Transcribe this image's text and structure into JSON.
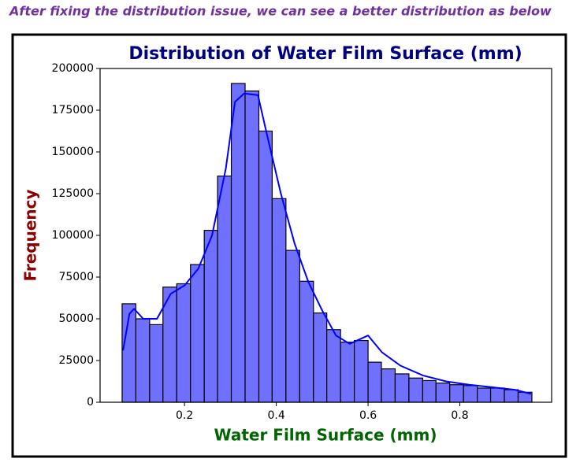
{
  "caption": "After fixing the distribution issue, we can see a better distribution as below",
  "caption_color": "#7030a0",
  "chart_data": {
    "type": "histogram",
    "title": "Distribution of Water Film Surface (mm)",
    "title_color": "#000080",
    "x_label": "Water Film Surface (mm)",
    "x_label_color": "#006400",
    "y_label": "Frequency",
    "y_label_color": "#8b0000",
    "bins": [
      0.064,
      0.094,
      0.124,
      0.153,
      0.183,
      0.213,
      0.243,
      0.272,
      0.302,
      0.332,
      0.362,
      0.391,
      0.421,
      0.451,
      0.481,
      0.51,
      0.54,
      0.57,
      0.6,
      0.629,
      0.659,
      0.689,
      0.719,
      0.748,
      0.778,
      0.808,
      0.838,
      0.867,
      0.897,
      0.927,
      0.957
    ],
    "values": [
      59000,
      50000,
      46500,
      69000,
      71000,
      82500,
      103000,
      135500,
      191000,
      186500,
      162500,
      122000,
      91000,
      72500,
      53500,
      43500,
      36000,
      37000,
      24000,
      20000,
      17000,
      14500,
      13000,
      11500,
      10500,
      10000,
      8500,
      8500,
      7500,
      6000
    ],
    "color": "#7070ff",
    "edge_color": "#000000",
    "kde": {
      "x": [
        0.066,
        0.08,
        0.09,
        0.11,
        0.14,
        0.17,
        0.2,
        0.23,
        0.26,
        0.29,
        0.31,
        0.33,
        0.36,
        0.38,
        0.41,
        0.44,
        0.47,
        0.5,
        0.53,
        0.56,
        0.6,
        0.63,
        0.67,
        0.72,
        0.77,
        0.82,
        0.87,
        0.92,
        0.955
      ],
      "values": [
        31000,
        53000,
        56000,
        50000,
        50000,
        65000,
        70000,
        80000,
        100000,
        140000,
        180000,
        185000,
        184000,
        160000,
        125000,
        95000,
        72000,
        55000,
        40000,
        35000,
        40000,
        30000,
        22000,
        16000,
        12500,
        10500,
        9000,
        7500,
        5000
      ],
      "color": "#0000ff"
    },
    "xlim": [
      0.016,
      1.0
    ],
    "ylim": [
      0,
      200000
    ],
    "xticks": [
      0.2,
      0.4,
      0.6,
      0.8
    ],
    "yticks": [
      0,
      25000,
      50000,
      75000,
      100000,
      125000,
      150000,
      175000,
      200000
    ]
  }
}
